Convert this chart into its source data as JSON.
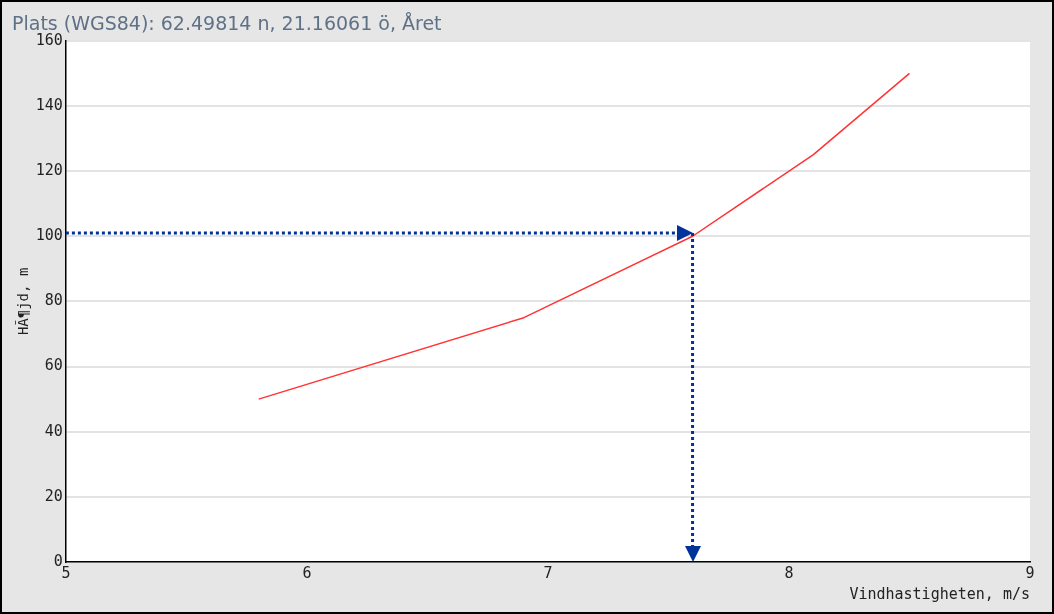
{
  "chart_data": {
    "type": "line",
    "title": "Plats (WGS84): 62.49814 n, 21.16061 ö, Året",
    "xlabel": "Vindhastigheten, m/s",
    "ylabel": "HÃ¶jd, m",
    "x": [
      5.8,
      6.9,
      7.6,
      8.1,
      8.5
    ],
    "series": [
      {
        "color": "#ff3333",
        "values": [
          50,
          75,
          100,
          125,
          150
        ]
      }
    ],
    "xlim": [
      5,
      9
    ],
    "xticks": [
      5,
      6,
      7,
      8,
      9
    ],
    "ylim": [
      0,
      160
    ],
    "yticks": [
      0,
      20,
      40,
      60,
      80,
      100,
      120,
      140,
      160
    ],
    "grid": "y",
    "legend": false,
    "marker": "none",
    "line_style": "solid",
    "ref_lines": [
      {
        "axis": "y",
        "value": 101,
        "color": "#003399",
        "line_style": "dotted"
      },
      {
        "axis": "x",
        "value": 7.6,
        "color": "#003399",
        "line_style": "dotted"
      }
    ]
  }
}
